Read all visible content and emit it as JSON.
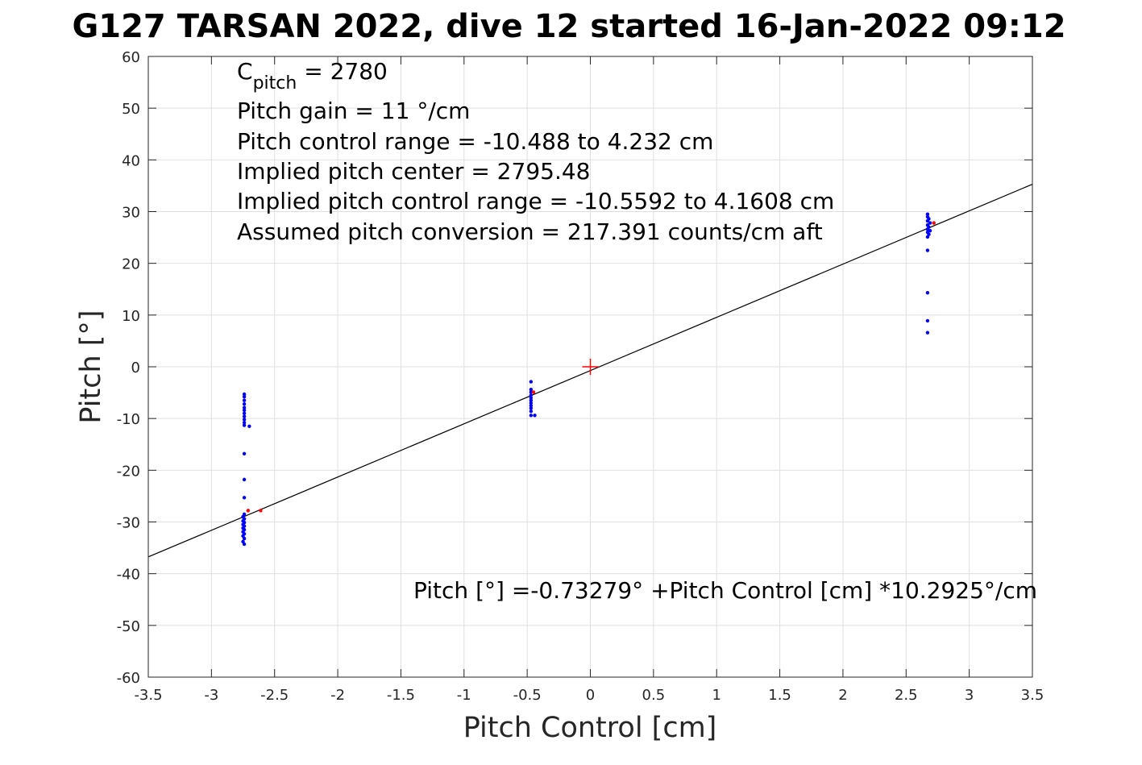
{
  "chart_data": {
    "type": "scatter",
    "title": "G127 TARSAN 2022, dive 12 started 16-Jan-2022 09:12",
    "xlabel": "Pitch Control [cm]",
    "ylabel": "Pitch [°]",
    "xlim": [
      -3.5,
      3.5
    ],
    "ylim": [
      -60,
      60
    ],
    "grid": true,
    "xticks": [
      -3.5,
      -3,
      -2.5,
      -2,
      -1.5,
      -1,
      -0.5,
      0,
      0.5,
      1,
      1.5,
      2,
      2.5,
      3,
      3.5
    ],
    "yticks": [
      60,
      50,
      40,
      30,
      20,
      10,
      0,
      -10,
      -20,
      -30,
      -40,
      -50,
      -60
    ],
    "annotations": {
      "c_pitch_prefix": "C",
      "c_pitch_sub": "pitch",
      "c_pitch_value": " = 2780",
      "lines": [
        "Pitch gain = 11 °/cm",
        "Pitch control range = -10.488 to 4.232 cm",
        "Implied pitch center = 2795.48",
        "Implied pitch control range = -10.5592 to 4.1608 cm",
        "Assumed pitch conversion = 217.391 counts/cm aft"
      ],
      "fit_equation": "Pitch [°] =-0.73279° +Pitch Control [cm] *10.2925°/cm"
    },
    "fit": {
      "intercept": -0.73279,
      "slope": 10.2925,
      "color": "#000000"
    },
    "center_marker": {
      "x": 0,
      "y": 0,
      "color": "#ff0000"
    },
    "series": [
      {
        "color": "#0000ff",
        "points": [
          [
            -2.74,
            -5.3
          ],
          [
            -2.74,
            -5.8
          ],
          [
            -2.74,
            -6.5
          ],
          [
            -2.74,
            -7.2
          ],
          [
            -2.74,
            -7.9
          ],
          [
            -2.74,
            -8.4
          ],
          [
            -2.74,
            -9.0
          ],
          [
            -2.74,
            -9.6
          ],
          [
            -2.74,
            -10.2
          ],
          [
            -2.74,
            -10.8
          ],
          [
            -2.74,
            -11.3
          ],
          [
            -2.7,
            -11.5
          ],
          [
            -2.74,
            -16.8
          ],
          [
            -2.74,
            -21.8
          ],
          [
            -2.74,
            -25.3
          ],
          [
            -2.74,
            -28.5
          ],
          [
            -2.75,
            -29.0
          ],
          [
            -2.74,
            -29.4
          ],
          [
            -2.75,
            -29.8
          ],
          [
            -2.74,
            -30.1
          ],
          [
            -2.75,
            -30.5
          ],
          [
            -2.74,
            -30.8
          ],
          [
            -2.75,
            -31.2
          ],
          [
            -2.74,
            -31.5
          ],
          [
            -2.75,
            -31.9
          ],
          [
            -2.74,
            -32.3
          ],
          [
            -2.75,
            -32.7
          ],
          [
            -2.74,
            -33.2
          ],
          [
            -2.75,
            -33.8
          ],
          [
            -2.74,
            -34.3
          ],
          [
            -0.47,
            -2.9
          ],
          [
            -0.47,
            -4.4
          ],
          [
            -0.47,
            -4.9
          ],
          [
            -0.47,
            -5.5
          ],
          [
            -0.47,
            -6.0
          ],
          [
            -0.47,
            -6.5
          ],
          [
            -0.47,
            -7.0
          ],
          [
            -0.47,
            -7.5
          ],
          [
            -0.47,
            -8.0
          ],
          [
            -0.47,
            -8.6
          ],
          [
            -0.47,
            -9.4
          ],
          [
            -0.44,
            -9.4
          ],
          [
            2.67,
            6.6
          ],
          [
            2.67,
            8.9
          ],
          [
            2.67,
            14.3
          ],
          [
            2.67,
            22.5
          ],
          [
            2.67,
            25.1
          ],
          [
            2.68,
            25.6
          ],
          [
            2.67,
            26.0
          ],
          [
            2.69,
            26.3
          ],
          [
            2.67,
            26.6
          ],
          [
            2.68,
            27.0
          ],
          [
            2.67,
            27.4
          ],
          [
            2.69,
            27.8
          ],
          [
            2.67,
            28.2
          ],
          [
            2.68,
            28.6
          ],
          [
            2.67,
            29.0
          ],
          [
            2.67,
            29.5
          ]
        ]
      },
      {
        "color": "#ff0000",
        "points": [
          [
            -2.71,
            -27.8
          ],
          [
            -2.61,
            -27.8
          ],
          [
            -0.45,
            -4.9
          ],
          [
            2.72,
            27.8
          ]
        ]
      }
    ]
  }
}
